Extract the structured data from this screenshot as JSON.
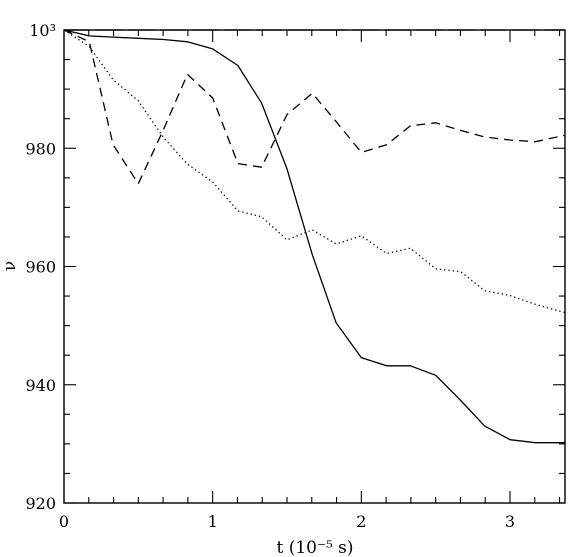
{
  "chart_data": {
    "type": "line",
    "title": "",
    "xlabel": "t (10⁻⁵ s)",
    "ylabel": "ν",
    "xlim": [
      0,
      3.37
    ],
    "ylim": [
      920,
      1000
    ],
    "x_ticks": [
      {
        "value": 0,
        "label": "0"
      },
      {
        "value": 1,
        "label": "1"
      },
      {
        "value": 2,
        "label": "2"
      },
      {
        "value": 3,
        "label": "3"
      }
    ],
    "y_ticks": [
      {
        "value": 920,
        "label": "920"
      },
      {
        "value": 940,
        "label": "940"
      },
      {
        "value": 960,
        "label": "960"
      },
      {
        "value": 980,
        "label": "980"
      },
      {
        "value": 1000,
        "label": "10³"
      }
    ],
    "grid": false,
    "series": [
      {
        "style": "long-dash",
        "x": [
          0,
          3.37
        ],
        "y": [
          1000,
          1000
        ]
      },
      {
        "style": "solid",
        "x": [
          0,
          0.17,
          0.33,
          0.5,
          0.67,
          0.83,
          1.0,
          1.17,
          1.33,
          1.5,
          1.67,
          1.83,
          2.0,
          2.17,
          2.33,
          2.5,
          2.67,
          2.83,
          3.0,
          3.17,
          3.37
        ],
        "y": [
          1000,
          999.0,
          998.8,
          998.6,
          998.4,
          998.0,
          996.8,
          994.0,
          987.6,
          976.5,
          962.0,
          950.5,
          944.6,
          943.2,
          943.2,
          941.6,
          937.3,
          933.0,
          930.7,
          930.2,
          930.2
        ]
      },
      {
        "style": "dashed",
        "x": [
          0,
          0.17,
          0.33,
          0.5,
          0.67,
          0.83,
          1.0,
          1.17,
          1.33,
          1.5,
          1.67,
          1.83,
          2.0,
          2.17,
          2.33,
          2.5,
          2.67,
          2.83,
          3.0,
          3.17,
          3.37
        ],
        "y": [
          1000,
          998.0,
          980.6,
          974.0,
          983.2,
          992.5,
          988.5,
          977.4,
          976.8,
          985.7,
          989.3,
          984.5,
          979.3,
          980.6,
          983.8,
          984.3,
          983.0,
          981.9,
          981.4,
          981.1,
          982.2
        ]
      },
      {
        "style": "dotted",
        "x": [
          0,
          0.17,
          0.33,
          0.5,
          0.67,
          0.83,
          1.0,
          1.17,
          1.33,
          1.5,
          1.67,
          1.83,
          2.0,
          2.17,
          2.33,
          2.5,
          2.67,
          2.83,
          3.0,
          3.17,
          3.37
        ],
        "y": [
          1000,
          997.2,
          991.6,
          988.0,
          981.8,
          977.3,
          974.3,
          969.4,
          968.4,
          964.5,
          966.2,
          963.8,
          965.2,
          962.2,
          963.1,
          959.6,
          959.1,
          955.9,
          955.1,
          953.6,
          952.2
        ]
      }
    ]
  }
}
